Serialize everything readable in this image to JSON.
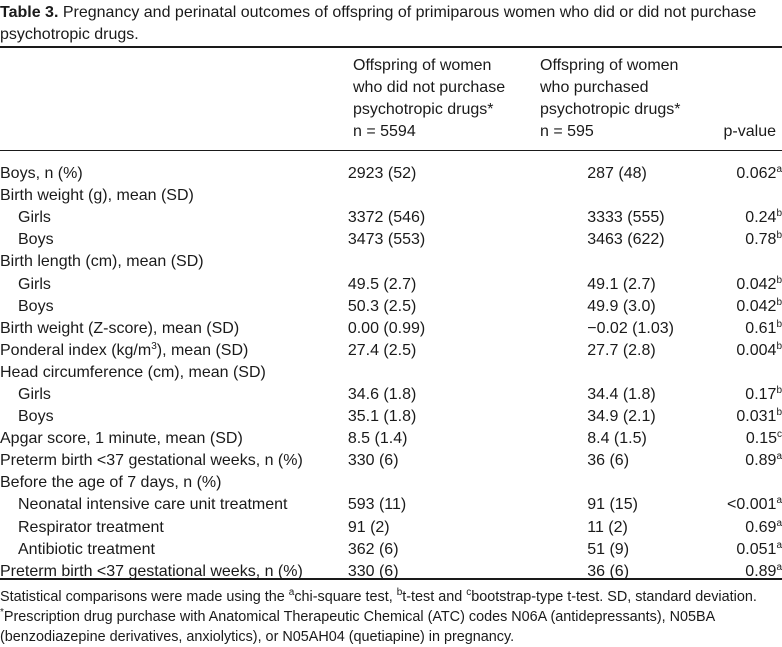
{
  "caption": {
    "label": "Table 3.",
    "text": "Pregnancy and perinatal outcomes of offspring of primiparous women who did or did not purchase psychotropic drugs."
  },
  "columns": {
    "group1": {
      "line1": "Offspring of women",
      "line2": "who did not purchase",
      "line3": "psychotropic drugs*",
      "n": "n = 5594"
    },
    "group2": {
      "line1": "Offspring of women",
      "line2": "who purchased",
      "line3": "psychotropic drugs*",
      "n": "n = 595"
    },
    "pvalue": "p-value"
  },
  "rows": [
    {
      "label": "Boys, n (%)",
      "indent": false,
      "g1": "2923 (52)",
      "g2": "287 (48)",
      "p": "0.062",
      "sup": "a"
    },
    {
      "label": "Birth weight (g), mean (SD)",
      "indent": false,
      "g1": "",
      "g2": "",
      "p": "",
      "sup": ""
    },
    {
      "label": "Girls",
      "indent": true,
      "g1": "3372 (546)",
      "g2": "3333 (555)",
      "p": "0.24",
      "sup": "b"
    },
    {
      "label": "Boys",
      "indent": true,
      "g1": "3473 (553)",
      "g2": "3463 (622)",
      "p": "0.78",
      "sup": "b"
    },
    {
      "label": "Birth length (cm), mean (SD)",
      "indent": false,
      "g1": "",
      "g2": "",
      "p": "",
      "sup": ""
    },
    {
      "label": "Girls",
      "indent": true,
      "g1": "49.5 (2.7)",
      "g2": "49.1 (2.7)",
      "p": "0.042",
      "sup": "b"
    },
    {
      "label": "Boys",
      "indent": true,
      "g1": "50.3 (2.5)",
      "g2": "49.9 (3.0)",
      "p": "0.042",
      "sup": "b"
    },
    {
      "label": "Birth weight (Z-score), mean (SD)",
      "indent": false,
      "g1": "0.00 (0.99)",
      "g2": "−0.02 (1.03)",
      "p": "0.61",
      "sup": "b"
    },
    {
      "label": "Ponderal index (kg/m3), mean (SD)",
      "indent": false,
      "g1": "27.4 (2.5)",
      "g2": "27.7 (2.8)",
      "p": "0.004",
      "sup": "b"
    },
    {
      "label": "Head circumference (cm), mean (SD)",
      "indent": false,
      "g1": "",
      "g2": "",
      "p": "",
      "sup": ""
    },
    {
      "label": "Girls",
      "indent": true,
      "g1": "34.6 (1.8)",
      "g2": "34.4 (1.8)",
      "p": "0.17",
      "sup": "b"
    },
    {
      "label": "Boys",
      "indent": true,
      "g1": "35.1 (1.8)",
      "g2": "34.9 (2.1)",
      "p": "0.031",
      "sup": "b"
    },
    {
      "label": "Apgar score, 1 minute, mean (SD)",
      "indent": false,
      "g1": "8.5 (1.4)",
      "g2": "8.4 (1.5)",
      "p": "0.15",
      "sup": "c"
    },
    {
      "label": "Preterm birth <37 gestational weeks, n (%)",
      "indent": false,
      "g1": "330 (6)",
      "g2": "36 (6)",
      "p": "0.89",
      "sup": "a"
    },
    {
      "label": "Before the age of 7 days, n (%)",
      "indent": false,
      "g1": "",
      "g2": "",
      "p": "",
      "sup": ""
    },
    {
      "label": "Neonatal intensive care unit treatment",
      "indent": true,
      "g1": "593 (11)",
      "g2": "91 (15)",
      "p": "<0.001",
      "sup": "a"
    },
    {
      "label": "Respirator treatment",
      "indent": true,
      "g1": "91 (2)",
      "g2": "11 (2)",
      "p": "0.69",
      "sup": "a"
    },
    {
      "label": "Antibiotic treatment",
      "indent": true,
      "g1": "362 (6)",
      "g2": "51 (9)",
      "p": "0.051",
      "sup": "a"
    },
    {
      "label": "Preterm birth <37 gestational weeks, n (%)",
      "indent": false,
      "g1": "330 (6)",
      "g2": "36 (6)",
      "p": "0.89",
      "sup": "a"
    }
  ],
  "footnotes": {
    "stats_part1": "Statistical comparisons were made using the ",
    "sup_a": "a",
    "stats_part2": "chi-square test, ",
    "sup_b": "b",
    "stats_part3": "t-test and ",
    "sup_c": "c",
    "stats_part4": "bootstrap-type t-test. SD, standard deviation.",
    "sup_star": "*",
    "prescription": "Prescription drug purchase with Anatomical Therapeutic Chemical (ATC) codes N06A (antidepressants), N05BA (benzodiazepine derivatives, anxiolytics), or N05AH04 (quetiapine) in pregnancy."
  }
}
